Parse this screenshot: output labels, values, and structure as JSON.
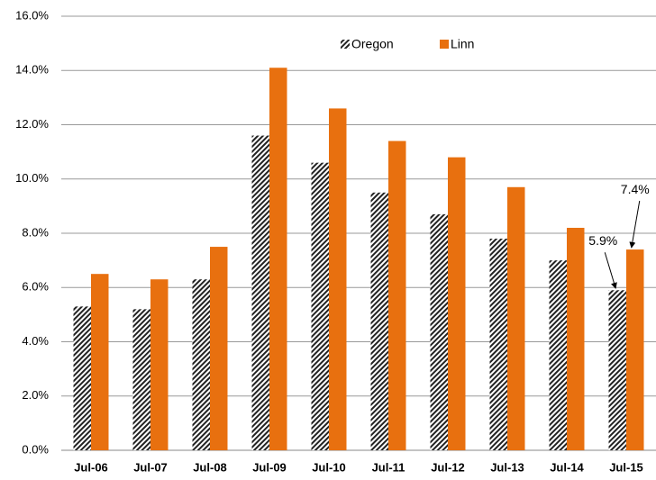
{
  "chart_data": {
    "type": "bar",
    "categories": [
      "Jul-06",
      "Jul-07",
      "Jul-08",
      "Jul-09",
      "Jul-10",
      "Jul-11",
      "Jul-12",
      "Jul-13",
      "Jul-14",
      "Jul-15"
    ],
    "series": [
      {
        "name": "Oregon",
        "color": "#222222",
        "pattern": "hatch",
        "values": [
          5.3,
          5.2,
          6.3,
          11.6,
          10.6,
          9.5,
          8.7,
          7.8,
          7.0,
          5.9
        ],
        "value_labels": [
          null,
          null,
          null,
          null,
          null,
          null,
          null,
          null,
          null,
          "5.9%"
        ]
      },
      {
        "name": "Linn",
        "color": "#e8700f",
        "values": [
          6.5,
          6.3,
          7.5,
          14.1,
          12.6,
          11.4,
          10.8,
          9.7,
          8.2,
          7.4
        ],
        "value_labels": [
          null,
          null,
          null,
          null,
          null,
          null,
          null,
          null,
          null,
          "7.4%"
        ]
      }
    ],
    "ylim": [
      0,
      16
    ],
    "yticks": [
      {
        "value": 0,
        "label": "0.0%"
      },
      {
        "value": 2,
        "label": "2.0%"
      },
      {
        "value": 4,
        "label": "4.0%"
      },
      {
        "value": 6,
        "label": "6.0%"
      },
      {
        "value": 8,
        "label": "8.0%"
      },
      {
        "value": 10,
        "label": "10.0%"
      },
      {
        "value": 12,
        "label": "12.0%"
      },
      {
        "value": 14,
        "label": "14.0%"
      },
      {
        "value": 16,
        "label": "16.0%"
      }
    ],
    "grid": true,
    "legend": "top"
  }
}
